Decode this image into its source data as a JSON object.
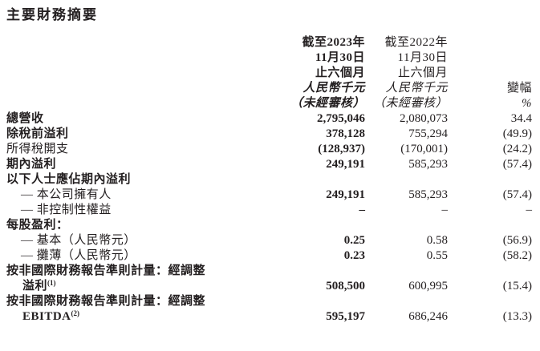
{
  "page": {
    "title": "主要財務摘要"
  },
  "table": {
    "header": {
      "col2023": {
        "lines": [
          "截至2023年",
          "11月30日",
          "止六個月",
          "人民幣千元",
          "（未經審核）"
        ],
        "italic_from": 3,
        "bold": true
      },
      "col2022": {
        "lines": [
          "截至2022年",
          "11月30日",
          "止六個月",
          "人民幣千元",
          "（未經審核）"
        ],
        "italic_from": 3,
        "bold": false
      },
      "colChange": {
        "lines": [
          "變幅",
          "%"
        ],
        "italic_from": 1,
        "bold": false
      }
    },
    "rows": [
      {
        "label": "總營收",
        "bold": true,
        "indent": 0,
        "v2023": "2,795,046",
        "v2022": "2,080,073",
        "change": "34.4"
      },
      {
        "label": "除稅前溢利",
        "bold": true,
        "indent": 0,
        "v2023": "378,128",
        "v2022": "755,294",
        "change": "(49.9)"
      },
      {
        "label": "所得稅開支",
        "bold": false,
        "indent": 0,
        "v2023": "(128,937)",
        "v2022": "(170,001)",
        "change": "(24.2)"
      },
      {
        "label": "期內溢利",
        "bold": true,
        "indent": 0,
        "v2023": "249,191",
        "v2022": "585,293",
        "change": "(57.4)"
      },
      {
        "label": "以下人士應佔期內溢利",
        "bold": true,
        "indent": 0,
        "v2023": "",
        "v2022": "",
        "change": ""
      },
      {
        "label": "— 本公司擁有人",
        "bold": false,
        "indent": 1,
        "v2023": "249,191",
        "v2022": "585,293",
        "change": "(57.4)"
      },
      {
        "label": "— 非控制性權益",
        "bold": false,
        "indent": 1,
        "v2023": "–",
        "v2022": "–",
        "change": "–"
      },
      {
        "label": "每股盈利：",
        "bold": true,
        "indent": 0,
        "v2023": "",
        "v2022": "",
        "change": ""
      },
      {
        "label": "— 基本（人民幣元）",
        "bold": false,
        "indent": 1,
        "v2023": "0.25",
        "v2022": "0.58",
        "change": "(56.9)"
      },
      {
        "label": "— 攤薄（人民幣元）",
        "bold": false,
        "indent": 1,
        "v2023": "0.23",
        "v2022": "0.55",
        "change": "(58.2)"
      },
      {
        "label": "按非國際財務報告準則計量：經調整",
        "label2": "溢利",
        "sup": "(1)",
        "bold": true,
        "indent": 0,
        "v2023": "508,500",
        "v2022": "600,995",
        "change": "(15.4)"
      },
      {
        "label": "按非國際財務報告準則計量：經調整",
        "label2": "EBITDA",
        "sup": "(2)",
        "bold": true,
        "indent": 0,
        "v2023": "595,197",
        "v2022": "686,246",
        "change": "(13.3)"
      }
    ]
  }
}
